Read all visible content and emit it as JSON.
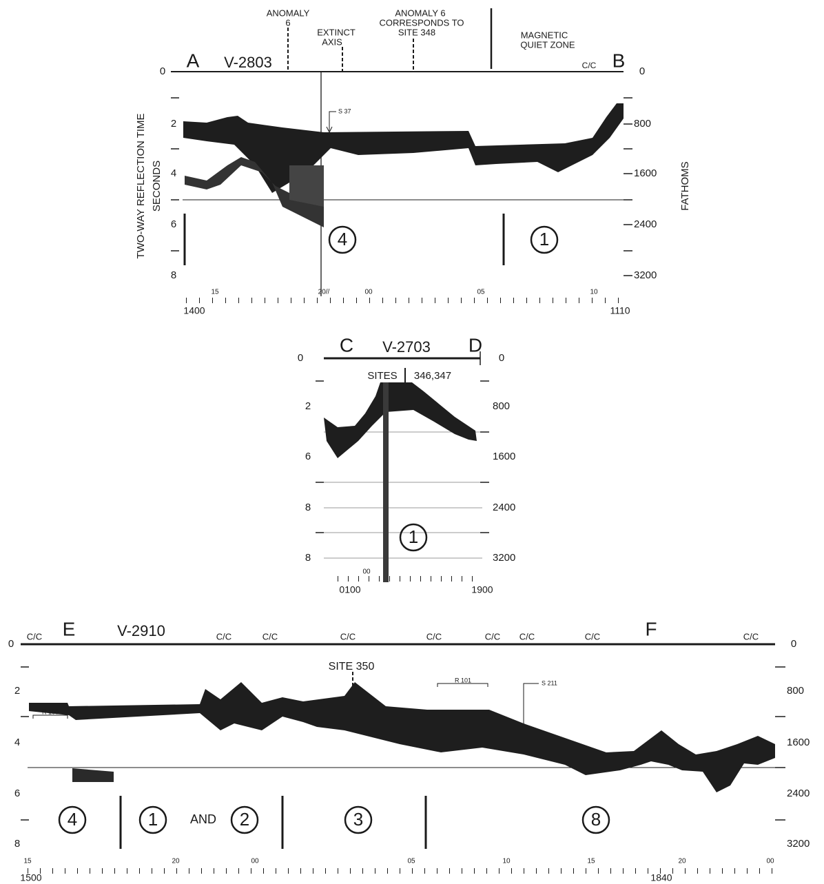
{
  "panels": [
    {
      "letters": [
        "A",
        "B"
      ],
      "profile": "V-2803",
      "cc": [
        "C/C"
      ],
      "annotations": [
        "ANOMALY",
        "6",
        "EXTINCT",
        "AXIS",
        "ANOMALY 6",
        "CORRESPONDS TO",
        "SITE 348",
        "MAGNETIC",
        "QUIET ZONE",
        "S 37"
      ],
      "axis_titles": [
        "TWO-WAY REFLECTION TIME",
        "SECONDS",
        "FATHOMS"
      ],
      "seconds_ticks": [
        "0",
        "2",
        "4",
        "6",
        "8"
      ],
      "fathom_ticks": [
        "0",
        "800",
        "1600",
        "2400",
        "3200"
      ],
      "zones": [
        "4",
        "1"
      ],
      "hour_ticks": [
        "15",
        "20//",
        "00",
        "05",
        "10"
      ],
      "times": [
        "1400",
        "1110"
      ]
    },
    {
      "letters": [
        "C",
        "D"
      ],
      "profile": "V-2703",
      "annotations": [
        "SITES",
        "346,347"
      ],
      "seconds_ticks": [
        "0",
        "2",
        "6",
        "8",
        "8"
      ],
      "fathom_ticks": [
        "0",
        "800",
        "1600",
        "2400",
        "3200"
      ],
      "zones": [
        "1"
      ],
      "hour_ticks": [
        "00"
      ],
      "times": [
        "0100",
        "1900"
      ]
    },
    {
      "letters": [
        "E",
        "F"
      ],
      "profile": "V-2910",
      "cc": [
        "C/C",
        "C/C",
        "C/C",
        "C/C",
        "C/C",
        "C/C",
        "C/C",
        "C/C",
        "C/C"
      ],
      "annotations": [
        "SITE 350",
        "R 101",
        "S 211",
        "R 100",
        "AND"
      ],
      "seconds_ticks": [
        "0",
        "2",
        "4",
        "6",
        "8"
      ],
      "fathom_ticks": [
        "0",
        "800",
        "1600",
        "2400",
        "3200"
      ],
      "zones": [
        "4",
        "1",
        "2",
        "3",
        "8"
      ],
      "hour_ticks": [
        "15",
        "20",
        "00",
        "05",
        "10",
        "15",
        "20",
        "00"
      ],
      "times": [
        "1500",
        "1840"
      ]
    }
  ]
}
